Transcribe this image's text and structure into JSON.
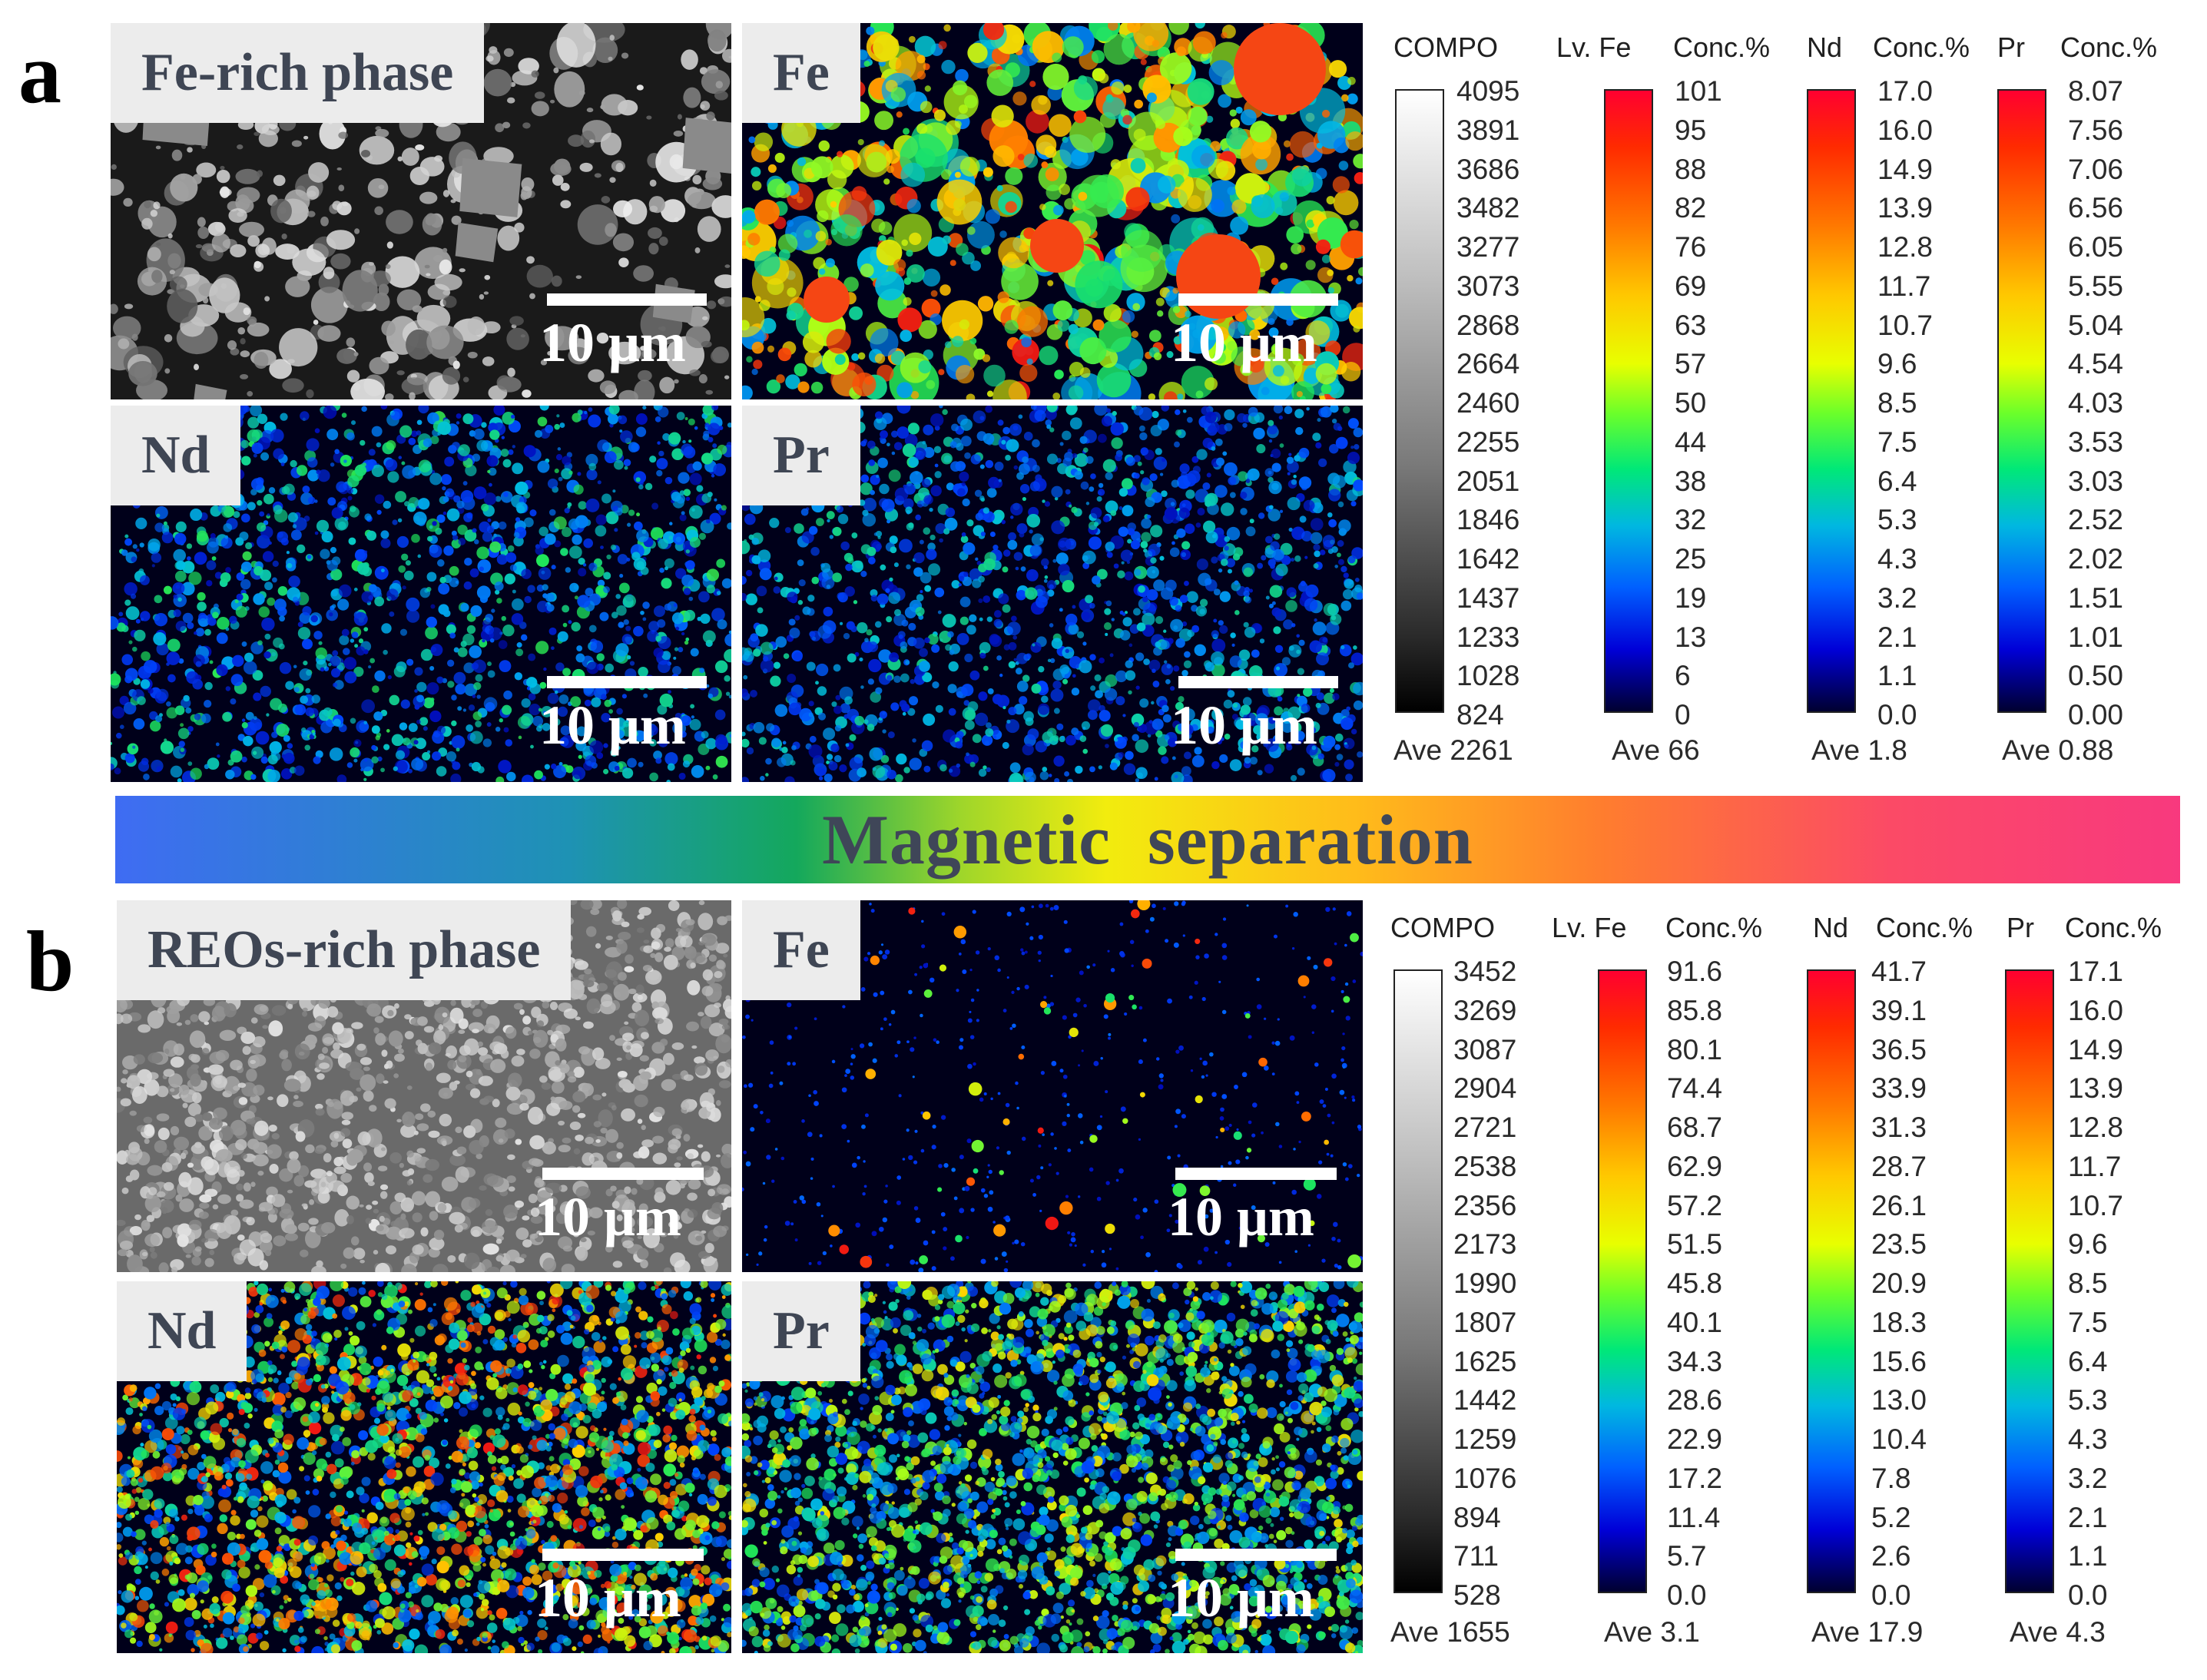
{
  "figure": {
    "separator": {
      "label": "Magnetic  separation"
    },
    "panels": [
      {
        "letter": "a",
        "maps": [
          {
            "label": "Fe-rich phase",
            "scale": "10 μm",
            "kind": "compo"
          },
          {
            "label": "Fe",
            "scale": "10 μm",
            "kind": "fe"
          },
          {
            "label": "Nd",
            "scale": "10 μm",
            "kind": "nd"
          },
          {
            "label": "Pr",
            "scale": "10 μm",
            "kind": "pr"
          }
        ],
        "legends": [
          {
            "h1": "COMPO",
            "h2": "",
            "type": "gray",
            "ticks": [
              "4095",
              "3891",
              "3686",
              "3482",
              "3277",
              "3073",
              "2868",
              "2664",
              "2460",
              "2255",
              "2051",
              "1846",
              "1642",
              "1437",
              "1233",
              "1028",
              "824"
            ],
            "ave": "Ave 2261"
          },
          {
            "h1": "Lv. Fe",
            "h2": "Conc.%",
            "type": "jet",
            "ticks": [
              "101",
              "95",
              "88",
              "82",
              "76",
              "69",
              "63",
              "57",
              "50",
              "44",
              "38",
              "32",
              "25",
              "19",
              "13",
              "6",
              "0"
            ],
            "ave": "Ave 66"
          },
          {
            "h1": "Nd",
            "h2": "Conc.%",
            "type": "jet",
            "ticks": [
              "17.0",
              "16.0",
              "14.9",
              "13.9",
              "12.8",
              "11.7",
              "10.7",
              "9.6",
              "8.5",
              "7.5",
              "6.4",
              "5.3",
              "4.3",
              "3.2",
              "2.1",
              "1.1",
              "0.0"
            ],
            "ave": "Ave 1.8"
          },
          {
            "h1": "Pr",
            "h2": "Conc.%",
            "type": "jet",
            "ticks": [
              "8.07",
              "7.56",
              "7.06",
              "6.56",
              "6.05",
              "5.55",
              "5.04",
              "4.54",
              "4.03",
              "3.53",
              "3.03",
              "2.52",
              "2.02",
              "1.51",
              "1.01",
              "0.50",
              "0.00"
            ],
            "ave": "Ave 0.88"
          }
        ]
      },
      {
        "letter": "b",
        "maps": [
          {
            "label": "REOs-rich phase",
            "scale": "10 μm",
            "kind": "compo2"
          },
          {
            "label": "Fe",
            "scale": "10 μm",
            "kind": "fe2"
          },
          {
            "label": "Nd",
            "scale": "10 μm",
            "kind": "nd2"
          },
          {
            "label": "Pr",
            "scale": "10 μm",
            "kind": "pr2"
          }
        ],
        "legends": [
          {
            "h1": "COMPO",
            "h2": "",
            "type": "gray",
            "ticks": [
              "3452",
              "3269",
              "3087",
              "2904",
              "2721",
              "2538",
              "2356",
              "2173",
              "1990",
              "1807",
              "1625",
              "1442",
              "1259",
              "1076",
              "894",
              "711",
              "528"
            ],
            "ave": "Ave 1655"
          },
          {
            "h1": "Lv. Fe",
            "h2": "Conc.%",
            "type": "jet",
            "ticks": [
              "91.6",
              "85.8",
              "80.1",
              "74.4",
              "68.7",
              "62.9",
              "57.2",
              "51.5",
              "45.8",
              "40.1",
              "34.3",
              "28.6",
              "22.9",
              "17.2",
              "11.4",
              "5.7",
              "0.0"
            ],
            "ave": "Ave 3.1"
          },
          {
            "h1": "Nd",
            "h2": "Conc.%",
            "type": "jet",
            "ticks": [
              "41.7",
              "39.1",
              "36.5",
              "33.9",
              "31.3",
              "28.7",
              "26.1",
              "23.5",
              "20.9",
              "18.3",
              "15.6",
              "13.0",
              "10.4",
              "7.8",
              "5.2",
              "2.6",
              "0.0"
            ],
            "ave": "Ave 17.9"
          },
          {
            "h1": "Pr",
            "h2": "Conc.%",
            "type": "jet",
            "ticks": [
              "17.1",
              "16.0",
              "14.9",
              "13.9",
              "12.8",
              "11.7",
              "10.7",
              "9.6",
              "8.5",
              "7.5",
              "6.4",
              "5.3",
              "4.3",
              "3.2",
              "2.1",
              "1.1",
              "0.0"
            ],
            "ave": "Ave 4.3"
          }
        ]
      }
    ]
  }
}
